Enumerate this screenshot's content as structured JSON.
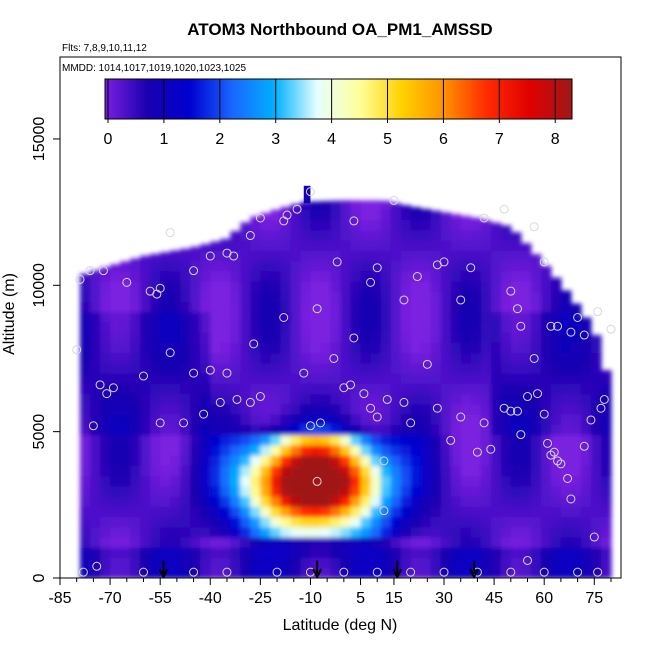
{
  "chart_data": {
    "type": "heatmap",
    "title": "ATOM3 Northbound OA_PM1_AMSSD",
    "subtitle_flights": "Flts: 7,8,9,10,11,12",
    "subtitle_dates": "MMDD: 1014,1017,1019,1020,1023,1025",
    "xlabel": "Latitude (deg N)",
    "ylabel": "Altitude (m)",
    "xlim": [
      -85,
      83
    ],
    "ylim": [
      0,
      17800
    ],
    "x_ticks": [
      -85,
      -70,
      -55,
      -40,
      -25,
      -10,
      5,
      15,
      30,
      45,
      60,
      75
    ],
    "x_tick_labels": [
      "-85",
      "-70",
      "-55",
      "-40",
      "-25",
      "-10",
      "5",
      "15",
      "30",
      "45",
      "60",
      "75"
    ],
    "y_ticks": [
      0,
      5000,
      10000,
      15000
    ],
    "y_tick_labels": [
      "0",
      "5000",
      "10000",
      "15000"
    ],
    "colorbar": {
      "min": 0,
      "max": 8.3,
      "ticks": [
        0,
        1,
        2,
        3,
        4,
        5,
        6,
        7,
        8
      ],
      "tick_labels": [
        "0",
        "1",
        "2",
        "3",
        "4",
        "5",
        "6",
        "7",
        "8"
      ],
      "colors": [
        "#7a20e0",
        "#1a00b0",
        "#0000d0",
        "#1a66ff",
        "#00b0ff",
        "#e6ffff",
        "#ffff99",
        "#ffd000",
        "#ff9000",
        "#ff2a00",
        "#e00000",
        "#a01818"
      ],
      "position": "top-inside"
    },
    "profile_markers_lat": [
      -54,
      -8,
      16,
      39
    ],
    "hotspot": {
      "lat": -9,
      "alt": 3300,
      "value": 8.0
    },
    "elevated_band": {
      "lat_center": -12,
      "alt_min": 1500,
      "alt_max": 5000,
      "value_range": [
        2,
        8
      ]
    },
    "samples": [
      [
        -78,
        200
      ],
      [
        -60,
        200
      ],
      [
        -45,
        200
      ],
      [
        -35,
        200
      ],
      [
        -20,
        200
      ],
      [
        -10,
        200
      ],
      [
        0,
        200
      ],
      [
        10,
        200
      ],
      [
        20,
        200
      ],
      [
        30,
        200
      ],
      [
        40,
        200
      ],
      [
        50,
        200
      ],
      [
        60,
        200
      ],
      [
        70,
        200
      ],
      [
        76,
        200
      ],
      [
        -74,
        400
      ],
      [
        55,
        600
      ],
      [
        75,
        1400
      ],
      [
        -80,
        7800
      ],
      [
        -75,
        5200
      ],
      [
        -73,
        6600
      ],
      [
        -71,
        6300
      ],
      [
        -69,
        6500
      ],
      [
        -60,
        6900
      ],
      [
        -55,
        5300
      ],
      [
        -52,
        7700
      ],
      [
        -48,
        5300
      ],
      [
        -45,
        7000
      ],
      [
        -42,
        5600
      ],
      [
        -40,
        7100
      ],
      [
        -37,
        6000
      ],
      [
        -35,
        7000
      ],
      [
        -32,
        6100
      ],
      [
        -28,
        6000
      ],
      [
        -27,
        8000
      ],
      [
        -25,
        6200
      ],
      [
        -18,
        8900
      ],
      [
        -12,
        7000
      ],
      [
        -10,
        5200
      ],
      [
        -7,
        5300
      ],
      [
        -3,
        7500
      ],
      [
        0,
        6500
      ],
      [
        2,
        6600
      ],
      [
        3,
        8200
      ],
      [
        6,
        6300
      ],
      [
        8,
        5800
      ],
      [
        10,
        5500
      ],
      [
        12,
        4000
      ],
      [
        13,
        6100
      ],
      [
        18,
        6000
      ],
      [
        20,
        5300
      ],
      [
        25,
        7300
      ],
      [
        28,
        5800
      ],
      [
        32,
        4700
      ],
      [
        35,
        5500
      ],
      [
        40,
        4300
      ],
      [
        42,
        5300
      ],
      [
        44,
        4400
      ],
      [
        48,
        5800
      ],
      [
        50,
        5700
      ],
      [
        52,
        5700
      ],
      [
        53,
        4900
      ],
      [
        55,
        6200
      ],
      [
        57,
        7500
      ],
      [
        58,
        6300
      ],
      [
        60,
        5600
      ],
      [
        61,
        4600
      ],
      [
        62,
        4200
      ],
      [
        63,
        4300
      ],
      [
        64,
        4000
      ],
      [
        65,
        3900
      ],
      [
        67,
        3400
      ],
      [
        68,
        2700
      ],
      [
        72,
        4500
      ],
      [
        74,
        5400
      ],
      [
        77,
        5800
      ],
      [
        78,
        6100
      ],
      [
        80,
        8500
      ],
      [
        -79,
        10200
      ],
      [
        -76,
        10500
      ],
      [
        -72,
        10500
      ],
      [
        -65,
        10100
      ],
      [
        -58,
        9800
      ],
      [
        -56,
        9700
      ],
      [
        -55,
        9900
      ],
      [
        -52,
        11800
      ],
      [
        -45,
        10500
      ],
      [
        -40,
        11000
      ],
      [
        -35,
        11100
      ],
      [
        -33,
        11000
      ],
      [
        -28,
        11700
      ],
      [
        -25,
        12300
      ],
      [
        -18,
        12200
      ],
      [
        -17,
        12400
      ],
      [
        -14,
        12600
      ],
      [
        -10,
        13200
      ],
      [
        -8,
        9200
      ],
      [
        -2,
        10800
      ],
      [
        3,
        12200
      ],
      [
        8,
        10100
      ],
      [
        10,
        10600
      ],
      [
        15,
        12900
      ],
      [
        18,
        9500
      ],
      [
        22,
        10300
      ],
      [
        28,
        10700
      ],
      [
        30,
        10800
      ],
      [
        35,
        9500
      ],
      [
        38,
        10600
      ],
      [
        42,
        12300
      ],
      [
        48,
        12600
      ],
      [
        50,
        9800
      ],
      [
        52,
        9200
      ],
      [
        53,
        8600
      ],
      [
        57,
        12000
      ],
      [
        60,
        10800
      ],
      [
        62,
        8600
      ],
      [
        64,
        8600
      ],
      [
        68,
        8400
      ],
      [
        70,
        8900
      ],
      [
        72,
        8300
      ],
      [
        76,
        9100
      ],
      [
        -8,
        3300
      ],
      [
        12,
        2300
      ]
    ]
  }
}
